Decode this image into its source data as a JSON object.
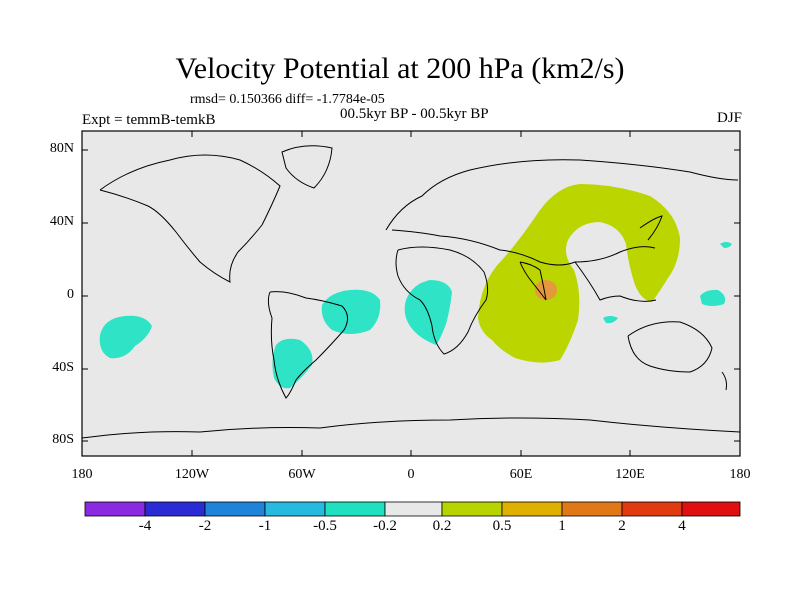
{
  "title": "Velocity Potential at 200 hPa (km2/s)",
  "stats": "rmsd= 0.150366 diff= -1.7784e-05",
  "experiment": "Expt = temmB-temkB",
  "period": "00.5kyr BP - 00.5kyr BP",
  "season": "DJF",
  "y_axis_labels": [
    "80N",
    "40N",
    "0",
    "40S",
    "80S"
  ],
  "x_axis_labels": [
    "180",
    "120W",
    "60W",
    "0",
    "60E",
    "120E",
    "180"
  ],
  "colorbar": {
    "labels": [
      "-4",
      "-2",
      "-1",
      "-0.5",
      "-0.2",
      "0.2",
      "0.5",
      "1",
      "2",
      "4"
    ],
    "colors": [
      "#8a2be2",
      "#2b2bd6",
      "#1f84d9",
      "#27b9e0",
      "#20e0c0",
      "#e8e8e8",
      "#b8d400",
      "#e0b000",
      "#e07818",
      "#e03a10",
      "#e01010"
    ]
  },
  "colors": {
    "background": "#e8e8e8",
    "positive": "#bad500",
    "negative": "#2ee3c6",
    "peak": "#e49a3c"
  }
}
